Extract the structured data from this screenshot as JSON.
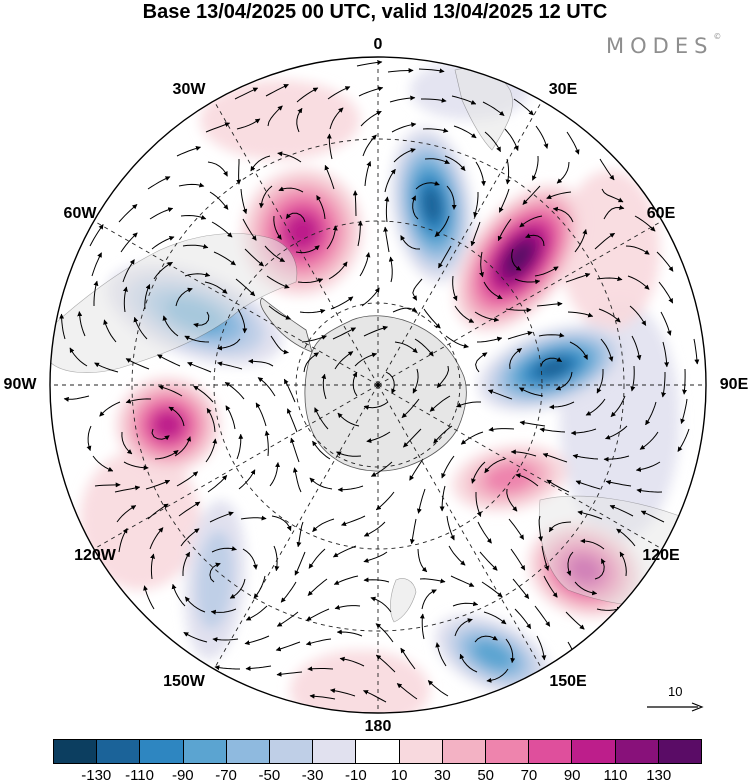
{
  "header": {
    "title": "Base 13/04/2025 00 UTC, valid 13/04/2025 12 UTC"
  },
  "brand": {
    "name": "MODES",
    "mark": "©"
  },
  "map": {
    "projection": "south-polar-stereographic",
    "longitude_labels": [
      "0",
      "30E",
      "60E",
      "90E",
      "120E",
      "150E",
      "180",
      "150W",
      "120W",
      "90W",
      "60W",
      "30W"
    ],
    "land_color": "#e6e6e6",
    "anomaly_fields": [
      {
        "name": "negative-anomaly-30E",
        "value": -110
      },
      {
        "name": "positive-anomaly-45E",
        "value": 120
      },
      {
        "name": "negative-anomaly-80E",
        "value": -100
      },
      {
        "name": "positive-anomaly-40W",
        "value": 90
      },
      {
        "name": "negative-anomaly-70W",
        "value": -70
      },
      {
        "name": "positive-anomaly-100W",
        "value": 90
      },
      {
        "name": "positive-anomaly-115E",
        "value": 80
      },
      {
        "name": "positive-anomaly-105E",
        "value": 50
      },
      {
        "name": "negative-anomaly-150E",
        "value": -60
      },
      {
        "name": "negative-anomaly-160W",
        "value": -30
      }
    ]
  },
  "vector_scale": {
    "label": "10"
  },
  "colorbar": {
    "colors": [
      "#0c3e60",
      "#1b6399",
      "#2e86c1",
      "#5ba4d1",
      "#8fbadf",
      "#bfcfe7",
      "#e1e1ef",
      "#ffffff",
      "#f8d9de",
      "#f3b2c4",
      "#ee84ad",
      "#df4f9c",
      "#bd1e8b",
      "#88117a",
      "#5a0c66"
    ],
    "tick_labels": [
      "-130",
      "-110",
      "-90",
      "-70",
      "-50",
      "-30",
      "-10",
      "10",
      "30",
      "50",
      "70",
      "90",
      "110",
      "130"
    ]
  }
}
